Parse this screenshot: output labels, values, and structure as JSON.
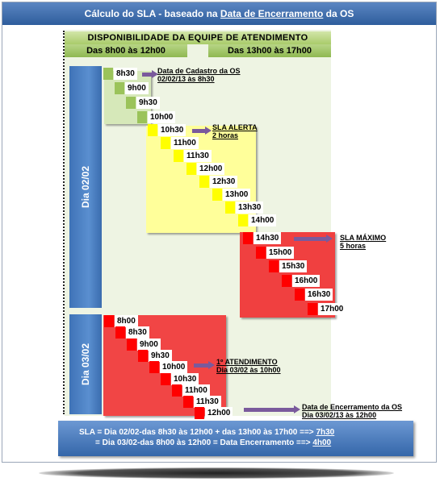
{
  "header": {
    "title_pre": "Cálculo do SLA - baseado na ",
    "title_link": "Data de Encerramento",
    "title_post": " da OS"
  },
  "availability": {
    "title": "DISPONIBILIDADE  DA  EQUIPE  DE  ATENDIMENTO",
    "morning": "Das 8h00 às 12h00",
    "afternoon": "Das 13h00 às 17h00"
  },
  "days": {
    "day1": "Dia 02/02",
    "day2": "Dia 03/02"
  },
  "steps_green": [
    "8h30",
    "9h00",
    "9h30",
    "10h00"
  ],
  "steps_yellow": [
    "10h30",
    "11h00",
    "11h30",
    "12h00",
    "12h30",
    "13h00",
    "13h30",
    "14h00"
  ],
  "steps_red1": [
    "14h30",
    "15h00",
    "15h30",
    "16h00",
    "16h30",
    "17h00"
  ],
  "steps_red2": [
    "8h00",
    "8h30",
    "9h00",
    "9h30",
    "10h00",
    "10h30",
    "11h00",
    "11h30",
    "12h00"
  ],
  "notes": {
    "cadastro_1": "Data de Cadastro da OS",
    "cadastro_2": "02/02/13 às 8h30",
    "alerta_1": "SLA ALERTA",
    "alerta_2": "2 horas",
    "maximo_1": "SLA MÁXIMO",
    "maximo_2": "5 horas",
    "atend_1": "1º ATENDIMENTO",
    "atend_2": "Dia 03/02 às 10h00",
    "encerr_1": "Data de Encerramento da OS",
    "encerr_2": "Dia 03/02/13 às  12h00"
  },
  "summary": {
    "line1": "SLA  = Dia 02/02-das 8h30 às 12h00 +  das  13h00 às 17h00  ==> ",
    "line1_result": "7h30",
    "line2": "= Dia 03/02-das 8h00 às 12h00 = Data Encerramento    ==> ",
    "line2_result": "4h00"
  },
  "colors": {
    "green": "#9bc35a",
    "yellow": "#ffff00",
    "red": "#ff0000",
    "blue": "#3f73b7",
    "arrow": "#7a5a9c"
  }
}
